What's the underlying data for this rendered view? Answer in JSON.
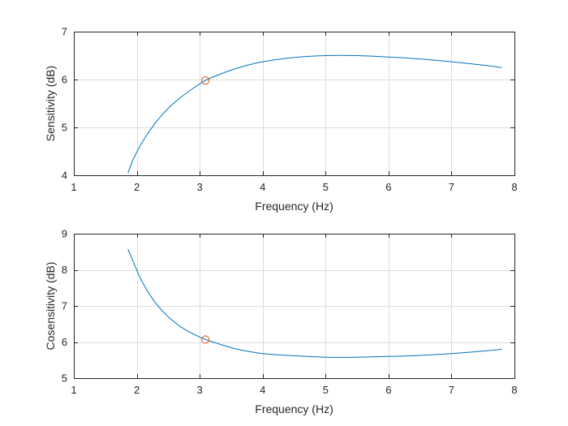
{
  "colors": {
    "background": "#ffffff",
    "axes_bg": "#ffffff",
    "axes_box": "#262626",
    "grid": "#dcdcdc",
    "line": "#0072bd",
    "marker": "#d95319"
  },
  "chart_data": [
    {
      "type": "line",
      "title": "",
      "xlabel": "Frequency (Hz)",
      "ylabel": "Sensitivity (dB)",
      "xlim": [
        1,
        8
      ],
      "ylim": [
        4,
        7
      ],
      "xticks": [
        "1",
        "2",
        "3",
        "4",
        "5",
        "6",
        "7",
        "8"
      ],
      "yticks": [
        "4",
        "5",
        "6",
        "7"
      ],
      "grid": true,
      "legend": "none",
      "series": [
        {
          "x": [
            1.86,
            1.95,
            2.1,
            2.3,
            2.5,
            2.7,
            2.9,
            3.09,
            3.3,
            3.6,
            4.0,
            4.5,
            5.0,
            5.5,
            6.0,
            6.5,
            7.0,
            7.5,
            7.8
          ],
          "y": [
            4.05,
            4.35,
            4.72,
            5.1,
            5.4,
            5.63,
            5.82,
            5.98,
            6.1,
            6.24,
            6.37,
            6.46,
            6.5,
            6.5,
            6.47,
            6.43,
            6.37,
            6.3,
            6.25
          ]
        }
      ],
      "markers": [
        {
          "x": 3.09,
          "y": 5.98
        }
      ]
    },
    {
      "type": "line",
      "title": "",
      "xlabel": "Frequency (Hz)",
      "ylabel": "Cosensitivity (dB)",
      "xlim": [
        1,
        8
      ],
      "ylim": [
        5,
        9
      ],
      "xticks": [
        "1",
        "2",
        "3",
        "4",
        "5",
        "6",
        "7",
        "8"
      ],
      "yticks": [
        "5",
        "6",
        "7",
        "8",
        "9"
      ],
      "grid": true,
      "legend": "none",
      "series": [
        {
          "x": [
            1.86,
            1.95,
            2.1,
            2.3,
            2.5,
            2.7,
            2.9,
            3.09,
            3.3,
            3.6,
            4.0,
            4.5,
            5.0,
            5.5,
            6.0,
            6.5,
            7.0,
            7.5,
            7.8
          ],
          "y": [
            8.57,
            8.2,
            7.62,
            7.08,
            6.7,
            6.42,
            6.22,
            6.07,
            5.95,
            5.8,
            5.68,
            5.62,
            5.58,
            5.58,
            5.6,
            5.63,
            5.68,
            5.75,
            5.8
          ]
        }
      ],
      "markers": [
        {
          "x": 3.09,
          "y": 6.07
        }
      ]
    }
  ]
}
